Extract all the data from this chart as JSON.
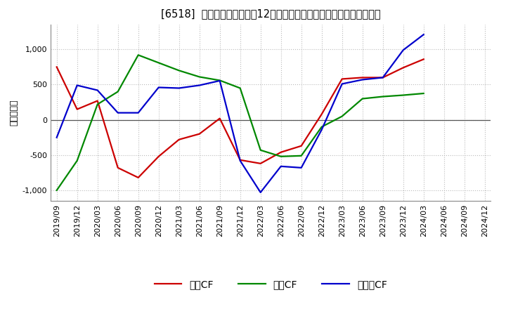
{
  "title": "[6518]  キャッシュフローの12か月移動合計の対前年同期増減額の推移",
  "ylabel": "（百万円）",
  "background_color": "#ffffff",
  "grid_color": "#bbbbbb",
  "x_labels": [
    "2019/09",
    "2019/12",
    "2020/03",
    "2020/06",
    "2020/09",
    "2020/12",
    "2021/03",
    "2021/06",
    "2021/09",
    "2021/12",
    "2022/03",
    "2022/06",
    "2022/09",
    "2022/12",
    "2023/03",
    "2023/06",
    "2023/09",
    "2023/12",
    "2024/03",
    "2024/06",
    "2024/09",
    "2024/12"
  ],
  "eigyo_cf": [
    750,
    150,
    270,
    -680,
    -820,
    -520,
    -280,
    -200,
    20,
    -570,
    -620,
    -460,
    -370,
    80,
    580,
    600,
    600,
    740,
    860,
    null,
    null,
    null
  ],
  "toshi_cf": [
    -1000,
    -580,
    220,
    400,
    920,
    810,
    700,
    610,
    560,
    450,
    -430,
    -520,
    -510,
    -100,
    50,
    300,
    330,
    350,
    375,
    null,
    null,
    null
  ],
  "free_cf": [
    -250,
    490,
    420,
    100,
    100,
    460,
    450,
    490,
    555,
    -580,
    -1030,
    -660,
    -680,
    -140,
    510,
    570,
    600,
    990,
    1210,
    null,
    null,
    null
  ],
  "eigyo_color": "#cc0000",
  "toshi_color": "#008800",
  "free_color": "#0000cc",
  "ylim": [
    -1150,
    1350
  ],
  "yticks": [
    -1000,
    -500,
    0,
    500,
    1000
  ],
  "legend_labels": [
    "営業CF",
    "投賄CF",
    "フリーCF"
  ]
}
